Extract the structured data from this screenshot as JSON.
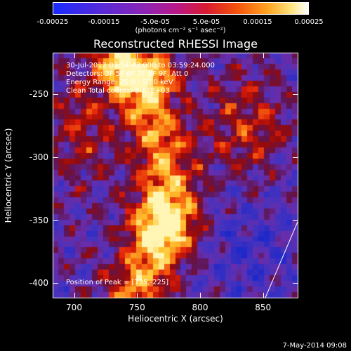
{
  "colorbar": {
    "tick_labels": [
      "-0.00025",
      "-0.00015",
      "-5.0e-05",
      "5.0e-05",
      "0.00015",
      "0.00025"
    ],
    "unit_label": "(photons cm⁻² s⁻¹ asec⁻²)",
    "min": -0.00025,
    "max": 0.00025
  },
  "title": "Reconstructed RHESSI Image",
  "info_lines": [
    "30-Jul-2012 03:54:42.000 to 03:59:24.000",
    "Detectors: 3F 5F 6F 7F 8F 9F, Att 0",
    "Energy Range: 25.0 - 50.0 keV",
    "Clean     Total counts: 5.17E+03"
  ],
  "peak_text": "Position of Peak = [735,-225]",
  "x_axis": {
    "title": "Heliocentric X (arcsec)",
    "ticks": [
      "700",
      "750",
      "800",
      "850"
    ],
    "range": [
      683,
      878
    ]
  },
  "y_axis": {
    "title": "Heliocentric Y (arcsec)",
    "ticks": [
      "-250",
      "-300",
      "-350",
      "-400"
    ],
    "range": [
      -412,
      -217
    ]
  },
  "date_stamp": "7-May-2014 09:08",
  "colors": {
    "low": "#3530b0",
    "mid": "#7a2aa8",
    "high_red": "#e01810",
    "orange": "#ff8a1a",
    "yellow": "#ffe060"
  }
}
